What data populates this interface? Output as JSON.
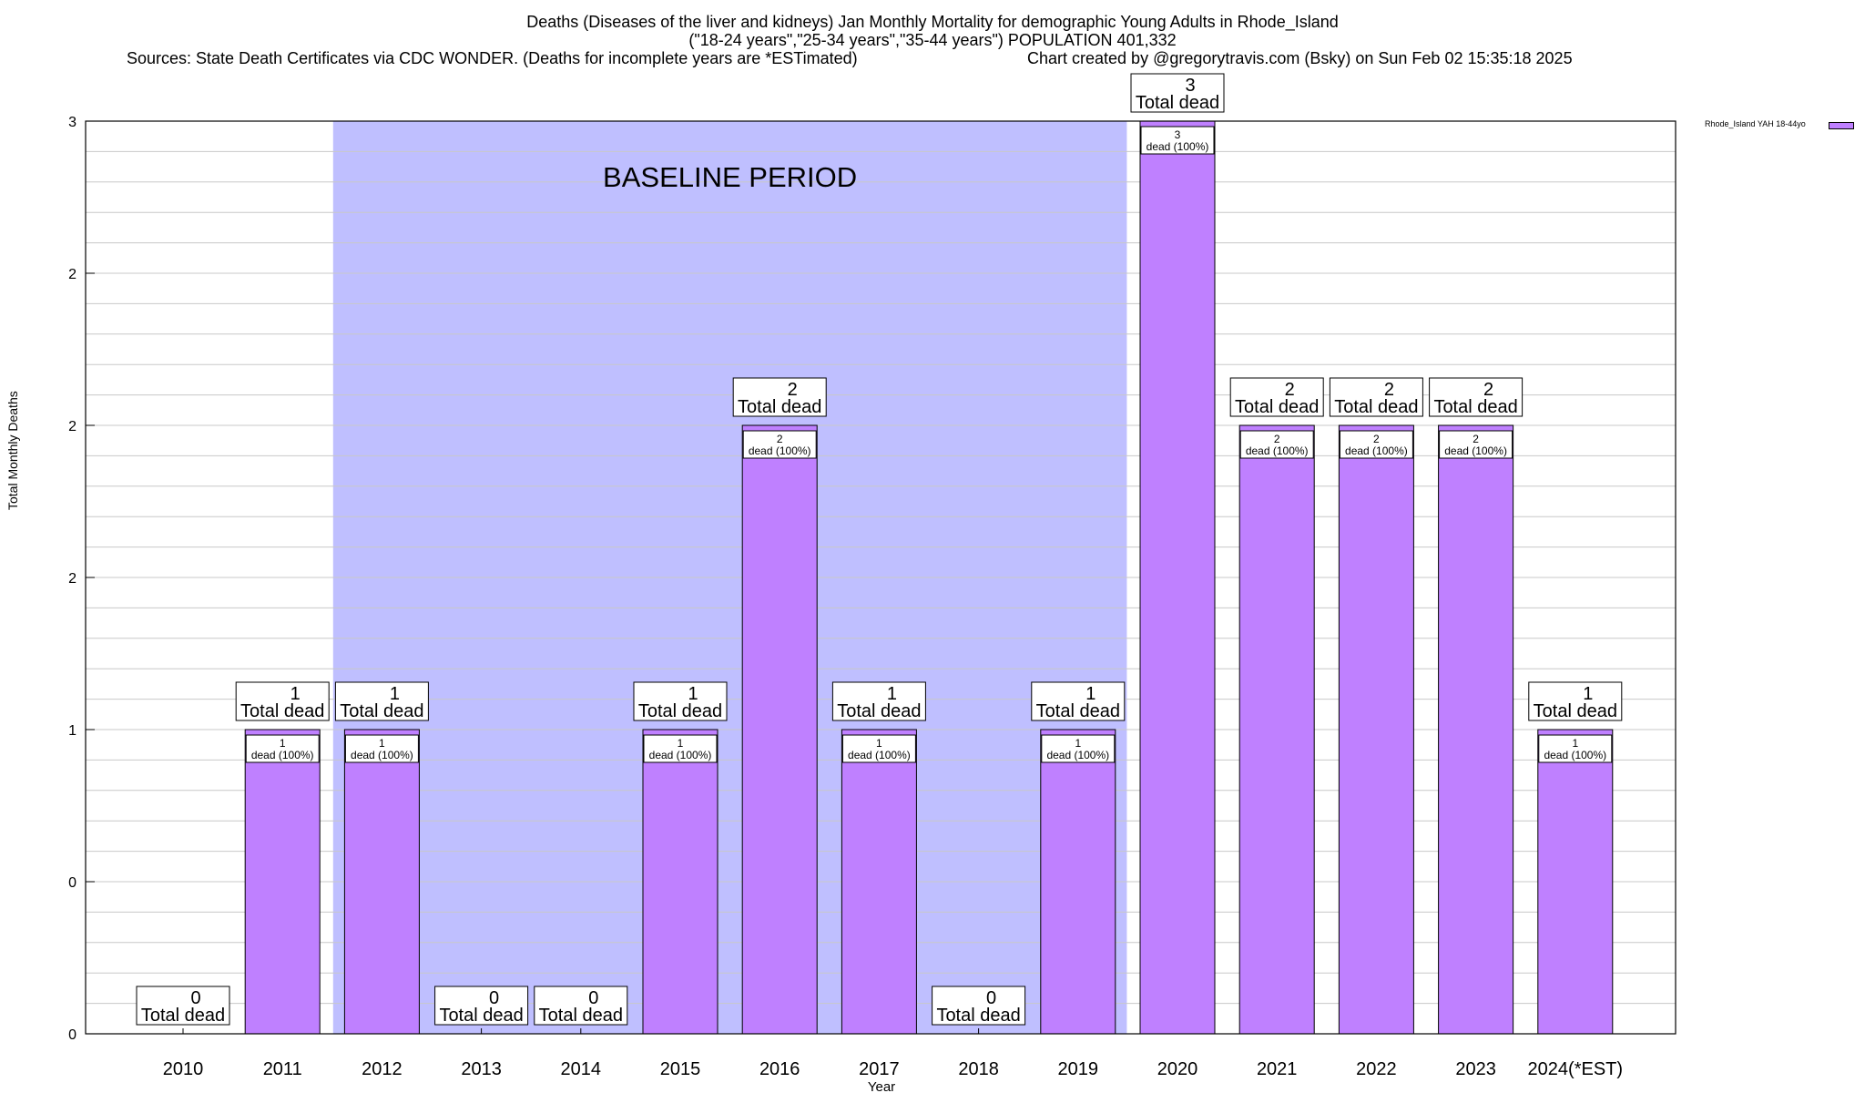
{
  "chart_data": {
    "type": "bar",
    "title": "Deaths (Diseases of the liver and kidneys) Jan Monthly Mortality for demographic Young Adults in Rhode_Island",
    "subtitle": "(\"18-24 years\",\"25-34 years\",\"35-44 years\") POPULATION 401,332",
    "sources": "Sources: State Death Certificates via CDC WONDER. (Deaths for incomplete years are *ESTimated)",
    "credit": "Chart created by @gregorytravis.com (Bsky) on Sun Feb 02 15:35:18 2025",
    "xlabel": "Year",
    "ylabel": "Total Monthly Deaths",
    "ylim": [
      0,
      3
    ],
    "yticks": [
      0,
      0.5,
      1,
      1.5,
      2,
      2.5,
      3
    ],
    "ytick_labels": [
      "0",
      "0",
      "1",
      "2",
      "2",
      "2",
      "3"
    ],
    "categories": [
      "2010",
      "2011",
      "2012",
      "2013",
      "2014",
      "2015",
      "2016",
      "2017",
      "2018",
      "2019",
      "2020",
      "2021",
      "2022",
      "2023",
      "2024(*EST)"
    ],
    "series": [
      {
        "name": "Rhode_Island YAH 18-44yo",
        "values": [
          0,
          1,
          1,
          0,
          0,
          1,
          2,
          1,
          0,
          1,
          3,
          2,
          2,
          2,
          1
        ]
      }
    ],
    "total_label_suffix": "Total dead",
    "inner_label_suffix": "dead (100%)",
    "baseline": {
      "label": "BASELINE PERIOD",
      "start": "2012",
      "end": "2019",
      "color": "#bfbfff"
    },
    "bar_color": "#bf80ff",
    "grid": true,
    "legend_position": "top-right"
  }
}
